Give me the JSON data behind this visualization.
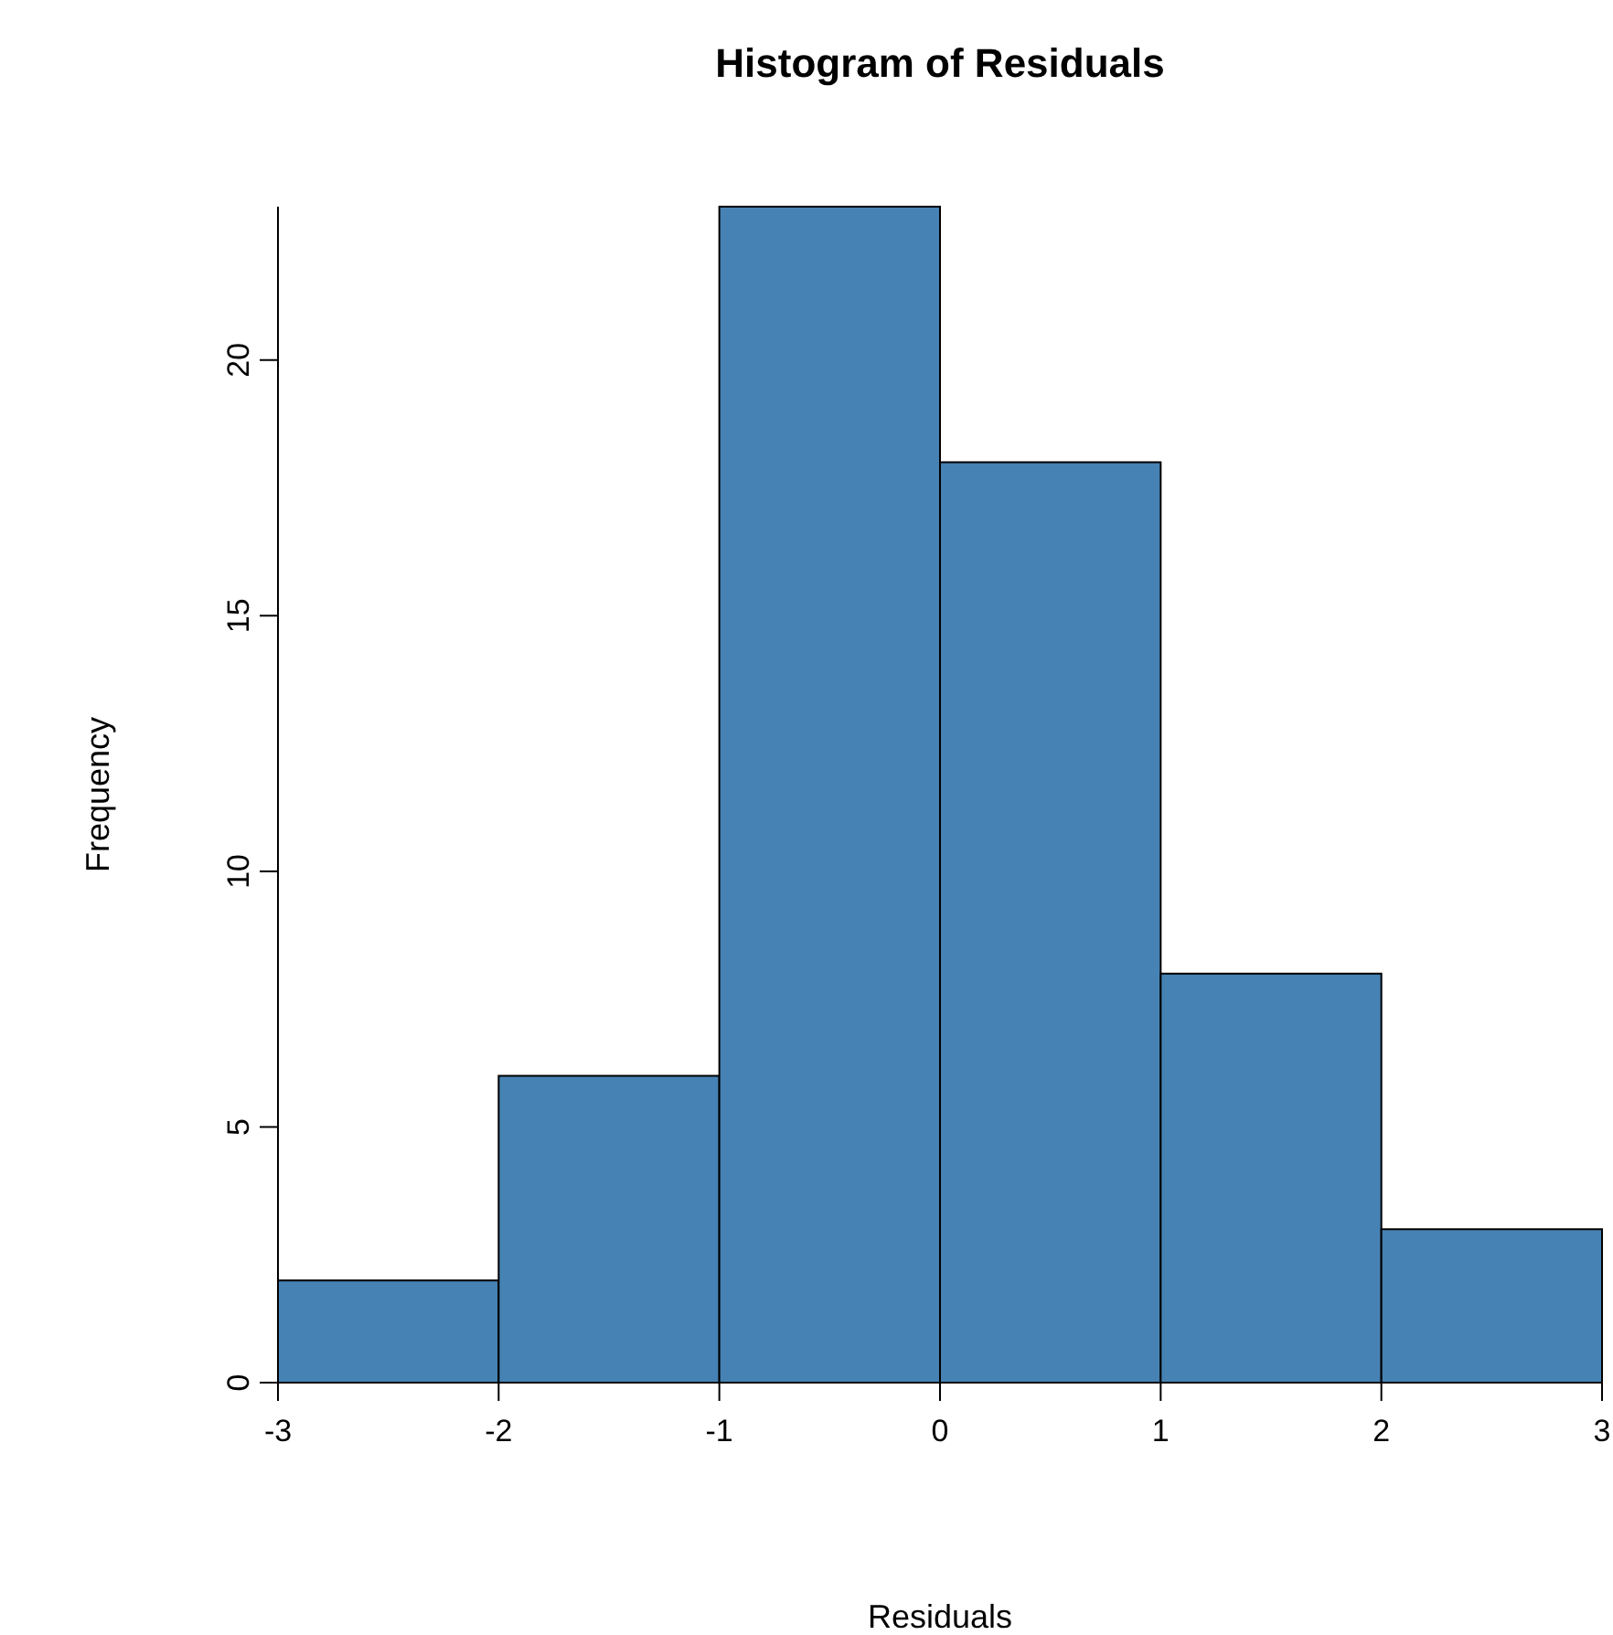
{
  "chart_data": {
    "type": "histogram",
    "title": "Histogram of Residuals",
    "xlabel": "Residuals",
    "ylabel": "Frequency",
    "bins": [
      -3,
      -2,
      -1,
      0,
      1,
      2,
      3
    ],
    "values": [
      2,
      6,
      23,
      18,
      8,
      3
    ],
    "color": "#4682b4",
    "xlim": [
      -3,
      3
    ],
    "xticks": [
      -3,
      -2,
      -1,
      0,
      1,
      2,
      3
    ],
    "ylim": [
      0,
      23
    ],
    "yticks": [
      0,
      5,
      10,
      15,
      20
    ],
    "grid": false
  }
}
